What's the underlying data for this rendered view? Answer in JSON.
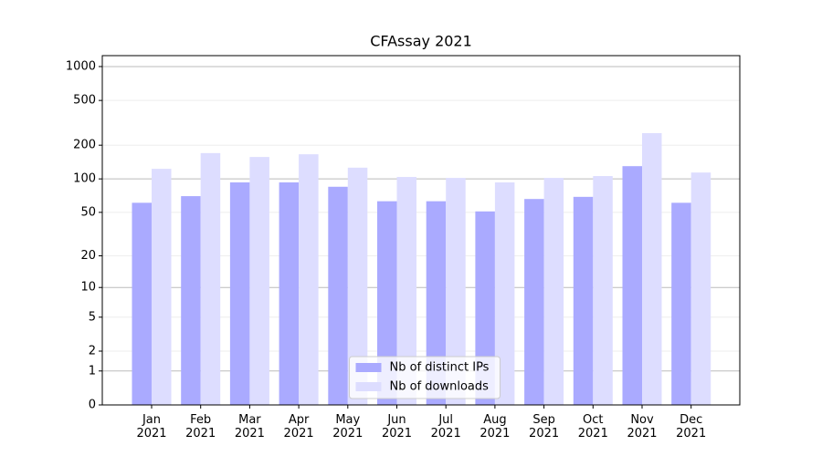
{
  "chart_data": {
    "type": "bar",
    "title": "CFAssay 2021",
    "categories": [
      "Jan\n2021",
      "Feb\n2021",
      "Mar\n2021",
      "Apr\n2021",
      "May\n2021",
      "Jun\n2021",
      "Jul\n2021",
      "Aug\n2021",
      "Sep\n2021",
      "Oct\n2021",
      "Nov\n2021",
      "Dec\n2021"
    ],
    "series": [
      {
        "name": "Nb of distinct IPs",
        "color": "#aaaaff",
        "values": [
          61,
          70,
          93,
          93,
          85,
          63,
          63,
          51,
          66,
          69,
          130,
          61
        ]
      },
      {
        "name": "Nb of downloads",
        "color": "#ddddff",
        "values": [
          123,
          170,
          157,
          166,
          126,
          104,
          102,
          93,
          102,
          106,
          256,
          114
        ]
      }
    ],
    "yscale": "log1p",
    "ylim": [
      0,
      1250
    ],
    "yticks": [
      0,
      1,
      2,
      5,
      10,
      20,
      50,
      100,
      200,
      500,
      1000
    ],
    "grid": true,
    "legend": "lower center"
  }
}
